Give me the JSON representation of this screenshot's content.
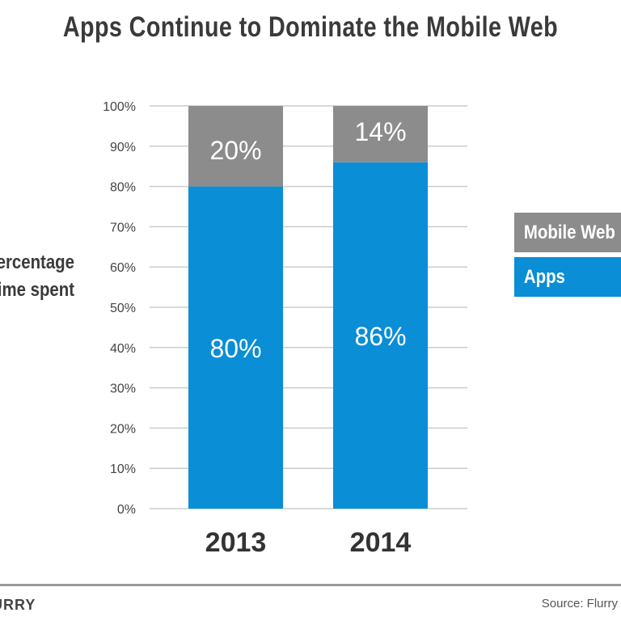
{
  "chart_data": {
    "type": "bar",
    "stacked": true,
    "title": "Apps Continue to Dominate the Mobile Web",
    "ylabel": [
      "Percentage",
      "of time spent"
    ],
    "xlabel": "",
    "categories": [
      "2013",
      "2014"
    ],
    "series": [
      {
        "name": "Apps",
        "values": [
          80,
          86
        ],
        "labels": [
          "80%",
          "86%"
        ],
        "color": "#0a8ed6"
      },
      {
        "name": "Mobile Web",
        "values": [
          20,
          14
        ],
        "labels": [
          "20%",
          "14%"
        ],
        "color": "#8c8c8c"
      }
    ],
    "ylim": [
      0,
      100
    ],
    "yticks": [
      "0%",
      "10%",
      "20%",
      "30%",
      "40%",
      "50%",
      "60%",
      "70%",
      "80%",
      "90%",
      "100%"
    ],
    "grid": true,
    "legend": [
      "Mobile Web",
      "Apps"
    ],
    "legend_placement": "right"
  },
  "footer": {
    "logo": "FLURRY",
    "source": "Source: Flurry"
  }
}
